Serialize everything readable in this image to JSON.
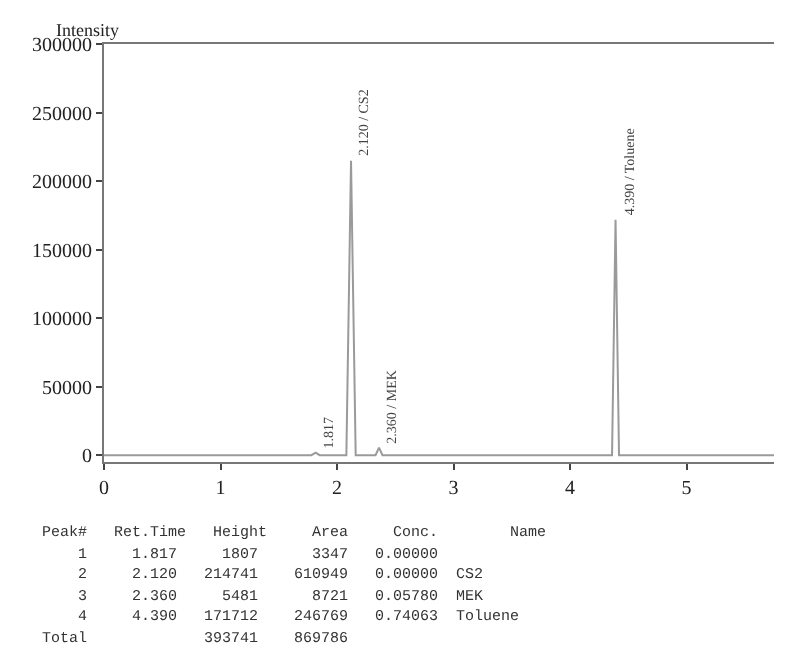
{
  "chart_data": {
    "type": "line",
    "ylabel": "Intensity",
    "line_style": "solid",
    "marker": "none",
    "x": [
      0,
      1.78,
      1.817,
      1.85,
      2.08,
      2.12,
      2.16,
      2.33,
      2.36,
      2.39,
      4.36,
      4.39,
      4.42,
      5.75
    ],
    "series": [
      {
        "color": "#9a9a9a",
        "values": [
          0,
          0,
          1807,
          0,
          0,
          214741,
          0,
          0,
          5481,
          0,
          0,
          171712,
          0,
          0
        ]
      }
    ],
    "xlim": [
      0,
      5.75
    ],
    "xticks": [
      0,
      1,
      2,
      3,
      4,
      5
    ],
    "ylim": [
      -5000,
      300000
    ],
    "yticks": [
      0,
      50000,
      100000,
      150000,
      200000,
      250000,
      300000
    ],
    "annotations": [
      {
        "text": "1.817",
        "x": 1.817,
        "y": 1807
      },
      {
        "text": "2.120 / CS2",
        "x": 2.12,
        "y": 214741
      },
      {
        "text": "2.360 / MEK",
        "x": 2.36,
        "y": 5481
      },
      {
        "text": "4.390 / Toluene",
        "x": 4.39,
        "y": 171712
      },
      "Peak#   Ret.Time   Height     Area     Conc.        Name",
      "    1     1.817     1807      3347   0.00000",
      "    2     2.120   214741    610949   0.00000  CS2",
      "    3     2.360     5481      8721   0.05780  MEK",
      "    4     4.390   171712    246769   0.74063  Toluene",
      "Total             393741    869786"
    ]
  }
}
